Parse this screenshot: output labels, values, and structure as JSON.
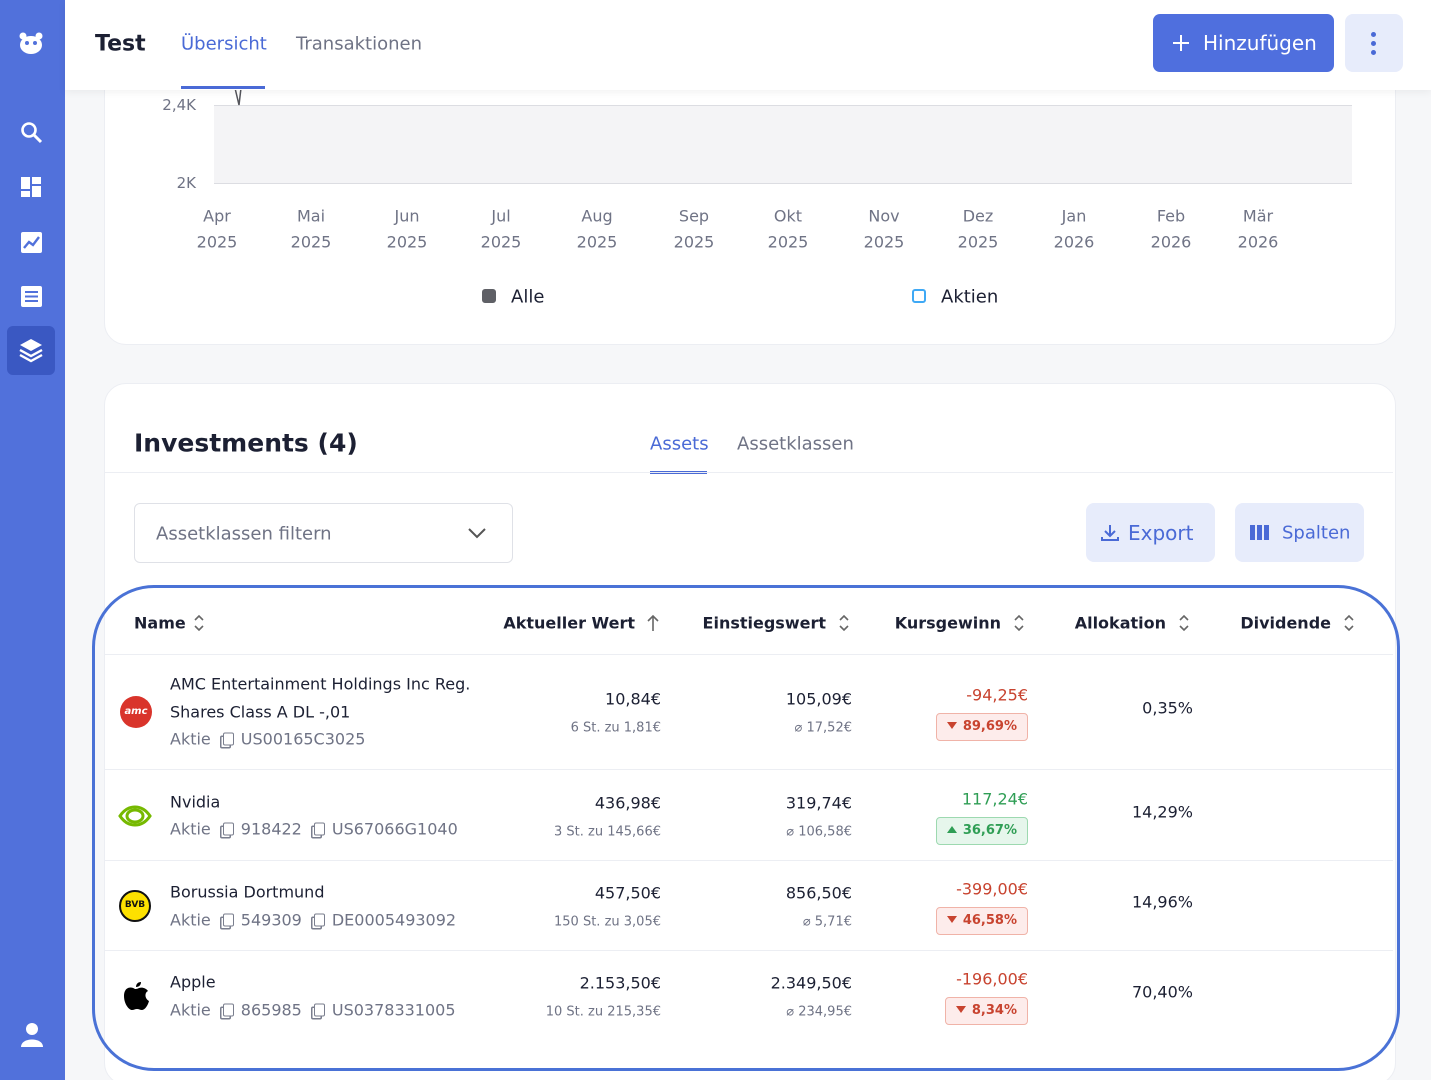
{
  "header": {
    "title": "Test",
    "tabs": [
      "Übersicht",
      "Transaktionen"
    ],
    "add_button": "Hinzufügen"
  },
  "chart": {
    "y_labels": [
      "2,4K",
      "2K"
    ],
    "x_labels": [
      [
        "Apr",
        "2025"
      ],
      [
        "Mai",
        "2025"
      ],
      [
        "Jun",
        "2025"
      ],
      [
        "Jul",
        "2025"
      ],
      [
        "Aug",
        "2025"
      ],
      [
        "Sep",
        "2025"
      ],
      [
        "Okt",
        "2025"
      ],
      [
        "Nov",
        "2025"
      ],
      [
        "Dez",
        "2025"
      ],
      [
        "Jan",
        "2026"
      ],
      [
        "Feb",
        "2026"
      ],
      [
        "Mär",
        "2026"
      ]
    ],
    "legend": [
      {
        "name": "Alle",
        "color": "#5f6066",
        "filled": true
      },
      {
        "name": "Aktien",
        "color": "#3fa9f5",
        "filled": false
      }
    ]
  },
  "investments": {
    "title": "Investments (4)",
    "tabs": [
      "Assets",
      "Assetklassen"
    ],
    "filter_placeholder": "Assetklassen filtern",
    "export_button": "Export",
    "columns_button": "Spalten",
    "columns": [
      "Name",
      "Aktueller Wert",
      "Einstiegswert",
      "Kursgewinn",
      "Allokation",
      "Dividende"
    ],
    "rows": [
      {
        "logo": {
          "kind": "amc",
          "text": "amc"
        },
        "name_lines": [
          "AMC Entertainment Holdings Inc Reg.",
          "Shares Class A DL -,01"
        ],
        "type": "Aktie",
        "ids": [
          "US00165C3025"
        ],
        "current_value": "10,84€",
        "current_detail": "6 St. zu 1,81€",
        "entry_value": "105,09€",
        "entry_detail": "⌀ 17,52€",
        "gain": "-94,25€",
        "gain_pct": "89,69%",
        "trend": "down",
        "allocation": "0,35%"
      },
      {
        "logo": {
          "kind": "nvidia"
        },
        "name_lines": [
          "Nvidia"
        ],
        "type": "Aktie",
        "ids": [
          "918422",
          "US67066G1040"
        ],
        "current_value": "436,98€",
        "current_detail": "3 St. zu 145,66€",
        "entry_value": "319,74€",
        "entry_detail": "⌀ 106,58€",
        "gain": "117,24€",
        "gain_pct": "36,67%",
        "trend": "up",
        "allocation": "14,29%"
      },
      {
        "logo": {
          "kind": "bvb",
          "text": "BVB"
        },
        "name_lines": [
          "Borussia Dortmund"
        ],
        "type": "Aktie",
        "ids": [
          "549309",
          "DE0005493092"
        ],
        "current_value": "457,50€",
        "current_detail": "150 St. zu 3,05€",
        "entry_value": "856,50€",
        "entry_detail": "⌀ 5,71€",
        "gain": "-399,00€",
        "gain_pct": "46,58%",
        "trend": "down",
        "allocation": "14,96%"
      },
      {
        "logo": {
          "kind": "apple"
        },
        "name_lines": [
          "Apple"
        ],
        "type": "Aktie",
        "ids": [
          "865985",
          "US0378331005"
        ],
        "current_value": "2.153,50€",
        "current_detail": "10 St. zu 215,35€",
        "entry_value": "2.349,50€",
        "entry_detail": "⌀ 234,95€",
        "gain": "-196,00€",
        "gain_pct": "8,34%",
        "trend": "down",
        "allocation": "70,40%"
      }
    ]
  }
}
